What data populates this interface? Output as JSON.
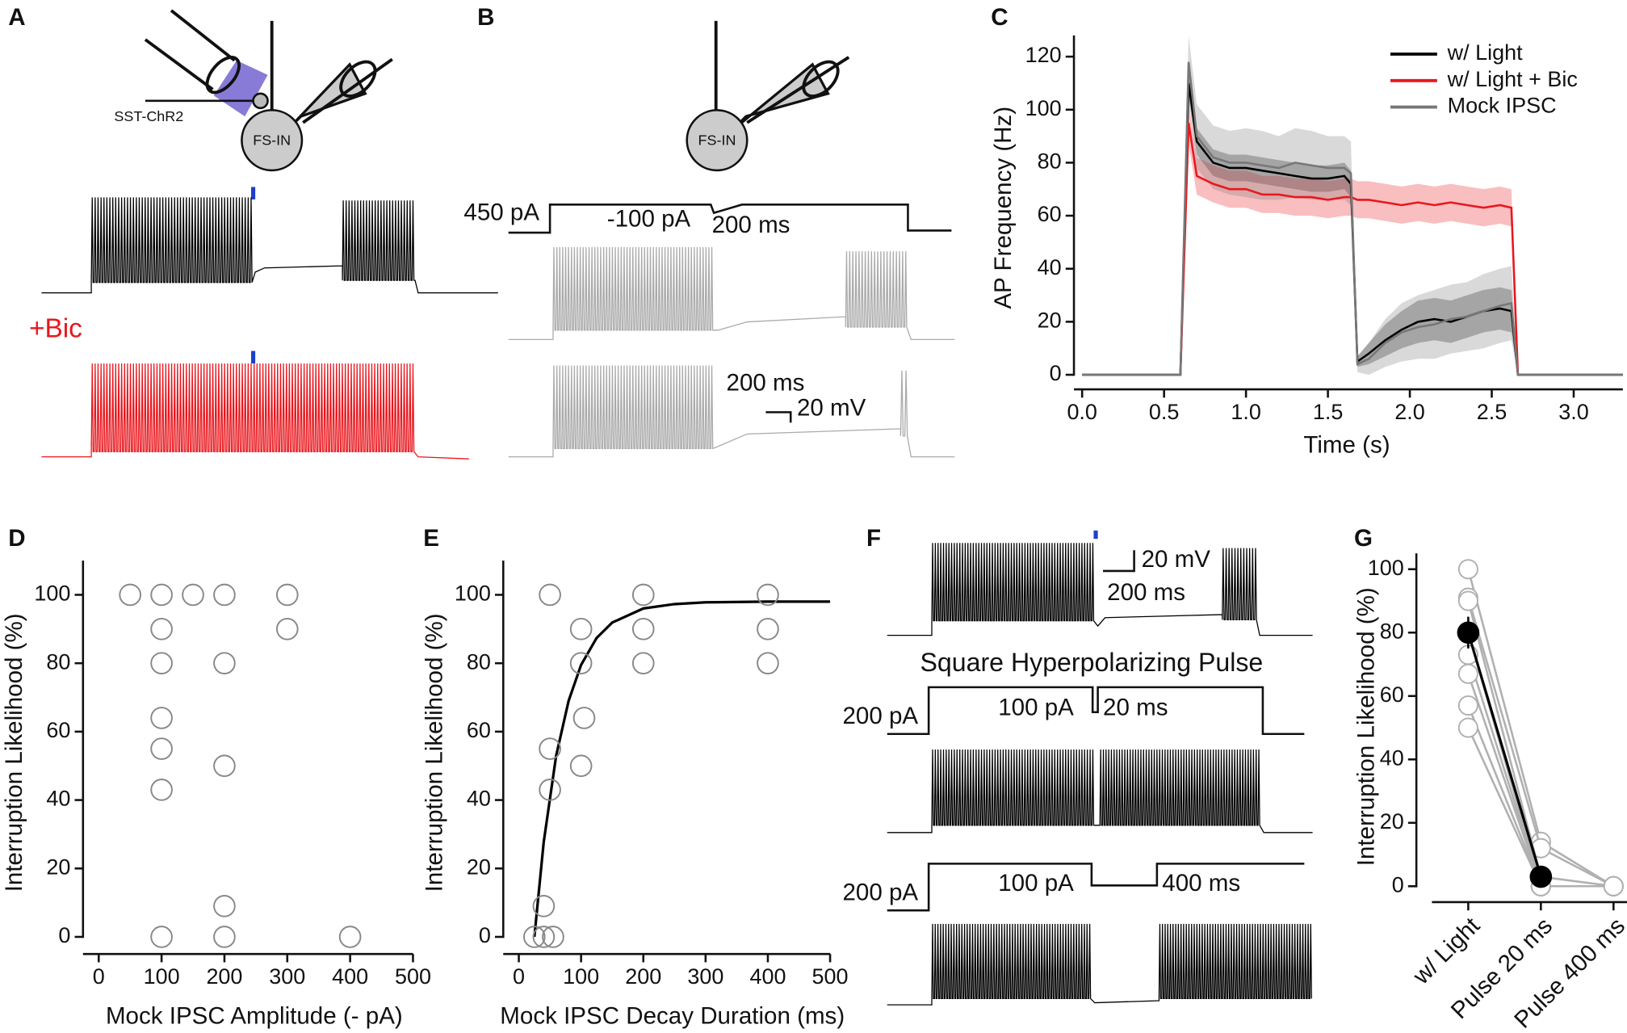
{
  "panel_labels": [
    "A",
    "B",
    "C",
    "D",
    "E",
    "F",
    "G"
  ],
  "diagram_text": {
    "a_presyn": "SST-ChR2",
    "a_cell": "FS-IN",
    "a_bic": "+Bic",
    "b_cell": "FS-IN",
    "b_hold": "450 pA",
    "b_step": "-100 pA",
    "b_dur": "200 ms",
    "b_scale_t": "200 ms",
    "b_scale_v": "20 mV",
    "f_scale_v": "20 mV",
    "f_scale_t": "200 ms",
    "f_title": "Square Hyperpolarizing Pulse",
    "f_hold1": "200 pA",
    "f_step1": "100 pA",
    "f_dur1": "20 ms",
    "f_hold2": "200 pA",
    "f_step2": "100 pA",
    "f_dur2": "400 ms"
  },
  "chart_data": [
    {
      "type": "line",
      "xlabel": "Time (s)",
      "ylabel": "AP Frequency (Hz)",
      "legend": "upper right",
      "x": [
        0,
        0.6,
        0.65,
        0.7,
        0.8,
        0.9,
        1.0,
        1.1,
        1.2,
        1.3,
        1.4,
        1.5,
        1.6,
        1.64,
        1.68,
        1.75,
        1.85,
        1.95,
        2.05,
        2.15,
        2.25,
        2.35,
        2.45,
        2.55,
        2.62,
        2.66,
        3.3
      ],
      "series": [
        {
          "name": "w/ Light",
          "color": "#000000",
          "values": [
            0,
            0,
            110,
            88,
            80,
            78,
            78,
            77,
            76,
            75,
            74,
            74,
            75,
            72,
            5,
            8,
            13,
            17,
            20,
            21,
            20,
            22,
            24,
            25,
            24,
            0,
            0
          ],
          "errors": [
            0,
            0,
            6,
            5,
            5,
            5,
            5,
            5,
            5,
            5,
            5,
            5,
            5,
            5,
            2,
            4,
            6,
            7,
            8,
            8,
            8,
            8,
            8,
            8,
            8,
            0,
            0
          ]
        },
        {
          "name": "w/ Light + Bic",
          "color": "#e8171e",
          "values": [
            0,
            0,
            95,
            75,
            72,
            70,
            70,
            68,
            68,
            67,
            67,
            66,
            67,
            67,
            66,
            66,
            65,
            64,
            65,
            64,
            65,
            64,
            63,
            64,
            63,
            0,
            0
          ],
          "errors": [
            0,
            0,
            8,
            7,
            7,
            7,
            7,
            7,
            7,
            7,
            7,
            7,
            7,
            7,
            7,
            7,
            7,
            7,
            7,
            7,
            7,
            7,
            7,
            7,
            7,
            0,
            0
          ]
        },
        {
          "name": "Mock IPSC",
          "color": "#777777",
          "values": [
            0,
            0,
            118,
            90,
            82,
            80,
            80,
            79,
            78,
            80,
            79,
            78,
            78,
            76,
            4,
            6,
            12,
            16,
            18,
            19,
            21,
            22,
            24,
            26,
            27,
            0,
            0
          ],
          "errors": [
            0,
            0,
            10,
            12,
            12,
            12,
            13,
            13,
            12,
            13,
            13,
            12,
            12,
            12,
            3,
            6,
            9,
            11,
            12,
            13,
            13,
            13,
            14,
            14,
            14,
            0,
            0
          ]
        }
      ],
      "xlim": [
        -0.05,
        3.3
      ],
      "xticks": [
        {
          "value": 0,
          "label": "0.0"
        },
        {
          "value": 0.5,
          "label": "0.5"
        },
        {
          "value": 1,
          "label": "1.0"
        },
        {
          "value": 1.5,
          "label": "1.5"
        },
        {
          "value": 2,
          "label": "2.0"
        },
        {
          "value": 2.5,
          "label": "2.5"
        },
        {
          "value": 3,
          "label": "3.0"
        }
      ],
      "ylim": [
        -5.5,
        128
      ],
      "yticks": [
        0,
        20,
        40,
        60,
        80,
        100,
        120
      ]
    },
    {
      "type": "scatter",
      "xlabel": "Mock IPSC Amplitude (- pA)",
      "ylabel": "Interruption Likelihood (%)",
      "color": "#888888",
      "x": [
        50,
        100,
        150,
        200,
        300,
        100,
        300,
        100,
        200,
        100,
        100,
        200,
        100,
        200,
        100,
        200,
        400
      ],
      "values": [
        100,
        100,
        100,
        100,
        100,
        90,
        90,
        80,
        80,
        64,
        55,
        50,
        43,
        9,
        0,
        0,
        0
      ],
      "xlim": [
        -25,
        500
      ],
      "xticks": [
        0,
        100,
        200,
        300,
        400,
        500
      ],
      "ylim": [
        -5,
        110
      ],
      "yticks": [
        0,
        20,
        40,
        60,
        80,
        100
      ]
    },
    {
      "type": "scatter",
      "xlabel": "Mock IPSC Decay Duration (ms)",
      "ylabel": "Interruption Likelihood (%)",
      "color": "#888888",
      "x": [
        25,
        40,
        55,
        40,
        50,
        50,
        50,
        100,
        105,
        100,
        100,
        200,
        200,
        200,
        400,
        400,
        400
      ],
      "values": [
        0,
        0,
        0,
        9,
        43,
        55,
        100,
        50,
        64,
        80,
        90,
        100,
        90,
        80,
        100,
        90,
        80
      ],
      "fit": {
        "color": "#000000",
        "x": [
          25,
          40,
          60,
          80,
          100,
          125,
          150,
          200,
          250,
          300,
          400,
          500
        ],
        "values": [
          0,
          27.7,
          53,
          69,
          79.5,
          87.4,
          91.9,
          96,
          97.3,
          97.8,
          98,
          98
        ]
      },
      "xlim": [
        -25,
        500
      ],
      "xticks": [
        0,
        100,
        200,
        300,
        400,
        500
      ],
      "ylim": [
        -5,
        110
      ],
      "yticks": [
        0,
        20,
        40,
        60,
        80,
        100
      ]
    },
    {
      "type": "paired",
      "ylabel": "Interruption Likelihood (%)",
      "categories": [
        "w/ Light",
        "Pulse 20 ms",
        "Pulse 400 ms"
      ],
      "series": [
        {
          "color": "#b0b0b0",
          "values": [
            100,
            14,
            0
          ]
        },
        {
          "color": "#b0b0b0",
          "values": [
            91,
            12,
            0
          ]
        },
        {
          "color": "#b0b0b0",
          "values": [
            90,
            3,
            0
          ]
        },
        {
          "color": "#b0b0b0",
          "values": [
            80,
            0,
            0
          ]
        },
        {
          "color": "#b0b0b0",
          "values": [
            73,
            0,
            0
          ]
        },
        {
          "color": "#b0b0b0",
          "values": [
            67,
            0,
            0
          ]
        },
        {
          "color": "#b0b0b0",
          "values": [
            57,
            0,
            0
          ]
        },
        {
          "color": "#b0b0b0",
          "values": [
            50,
            0,
            0
          ]
        },
        {
          "color": "#000000",
          "values": [
            80,
            3,
            null
          ],
          "errors": [
            5,
            1,
            null
          ],
          "filled": true
        }
      ],
      "ylim": [
        -5,
        105
      ],
      "yticks": [
        0,
        20,
        40,
        60,
        80,
        100
      ]
    }
  ]
}
